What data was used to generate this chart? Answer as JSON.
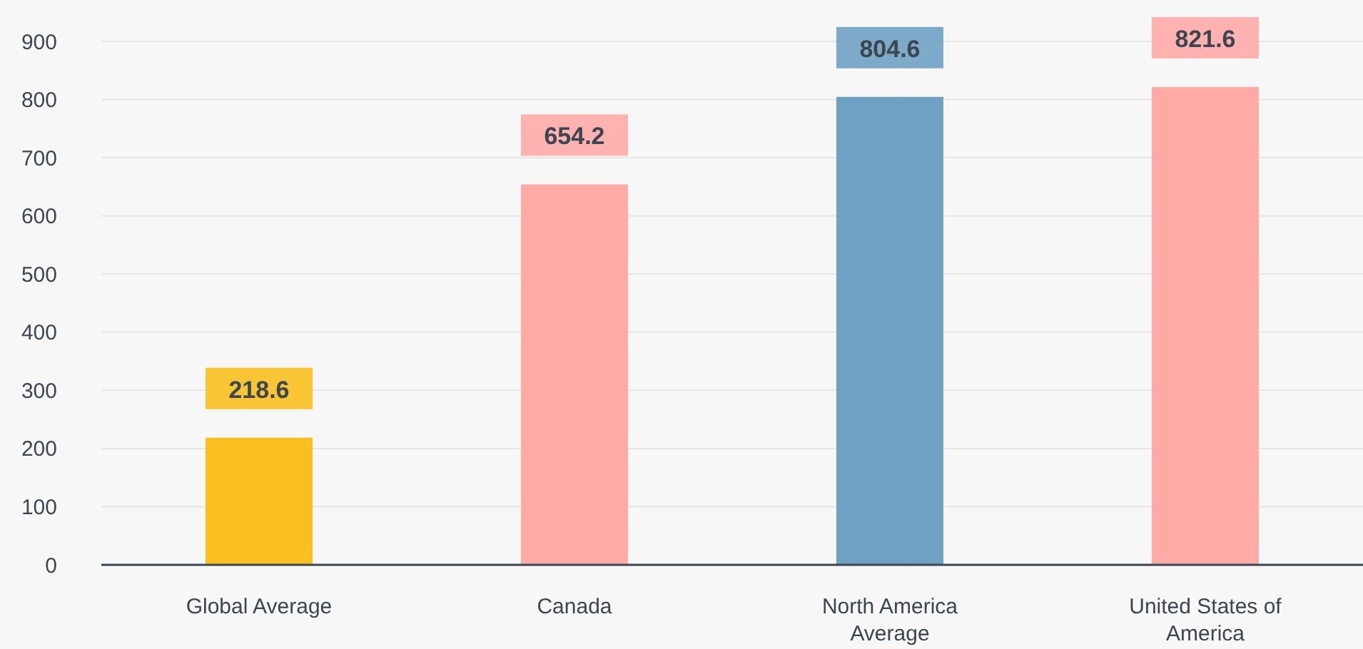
{
  "chart_data": {
    "type": "bar",
    "categories": [
      "Global Average",
      "Canada",
      "North America Average",
      "United States of America"
    ],
    "values": [
      218.6,
      654.2,
      804.6,
      821.6
    ],
    "colors": [
      "#f8bf1e",
      "#ffaaa6",
      "#6fa1c2",
      "#ffaaa6"
    ],
    "ylim": [
      0,
      900
    ],
    "yticks": [
      0,
      100,
      200,
      300,
      400,
      500,
      600,
      700,
      800,
      900
    ],
    "grid": "y",
    "data_labels": true
  }
}
